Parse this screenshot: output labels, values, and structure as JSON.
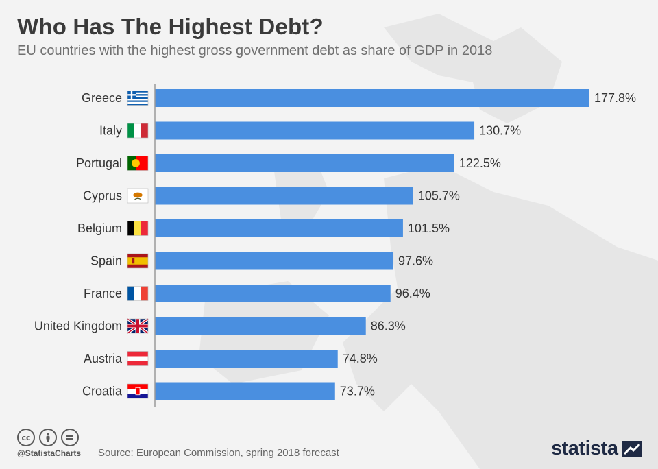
{
  "title": "Who Has The Highest Debt?",
  "subtitle": "EU countries with the highest gross government debt as share of GDP in 2018",
  "footer": {
    "handle": "@StatistaCharts",
    "source": "Source: European Commission, spring 2018 forecast",
    "logo": "statista",
    "license_icons": [
      "cc-icon",
      "attribution-icon",
      "no-derivatives-icon"
    ]
  },
  "colors": {
    "bar": "#4a8fe0",
    "background": "#f3f3f3",
    "axis": "#999999"
  },
  "chart_data": {
    "type": "bar",
    "orientation": "horizontal",
    "categories": [
      "Greece",
      "Italy",
      "Portugal",
      "Cyprus",
      "Belgium",
      "Spain",
      "France",
      "United Kingdom",
      "Austria",
      "Croatia"
    ],
    "values": [
      177.8,
      130.7,
      122.5,
      105.7,
      101.5,
      97.6,
      96.4,
      86.3,
      74.8,
      73.7
    ],
    "value_labels": [
      "177.8%",
      "130.7%",
      "122.5%",
      "105.7%",
      "101.5%",
      "97.6%",
      "96.4%",
      "86.3%",
      "74.8%",
      "73.7%"
    ],
    "flags": [
      "greece-flag-icon",
      "italy-flag-icon",
      "portugal-flag-icon",
      "cyprus-flag-icon",
      "belgium-flag-icon",
      "spain-flag-icon",
      "france-flag-icon",
      "uk-flag-icon",
      "austria-flag-icon",
      "croatia-flag-icon"
    ],
    "xlim": [
      0,
      177.8
    ],
    "grid": false,
    "legend": "none"
  }
}
